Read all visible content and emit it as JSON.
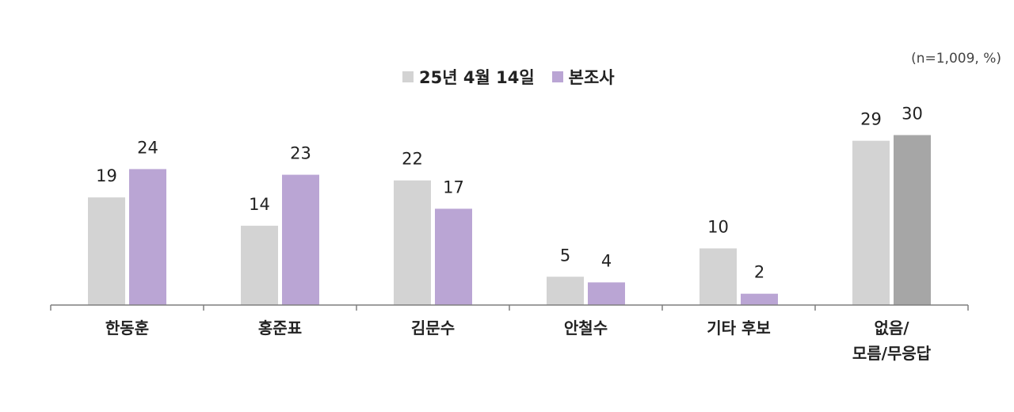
{
  "note": "(n=1,009, %)",
  "colors": {
    "series0": "#d3d3d3",
    "series1": "#baa5d4",
    "highlight": "#a6a6a6",
    "axis": "#7f7f7f"
  },
  "chart_data": {
    "type": "bar",
    "categories": [
      "한동훈",
      "홍준표",
      "김문수",
      "안철수",
      "기타 후보",
      "없음/\n모름/무응답"
    ],
    "series": [
      {
        "name": "25년 4월 14일",
        "values": [
          19,
          14,
          22,
          5,
          10,
          29
        ]
      },
      {
        "name": "본조사",
        "values": [
          24,
          23,
          17,
          4,
          2,
          30
        ]
      }
    ],
    "ylim": [
      0,
      35
    ],
    "grid": false,
    "legend": "top-center",
    "data_labels": true
  }
}
